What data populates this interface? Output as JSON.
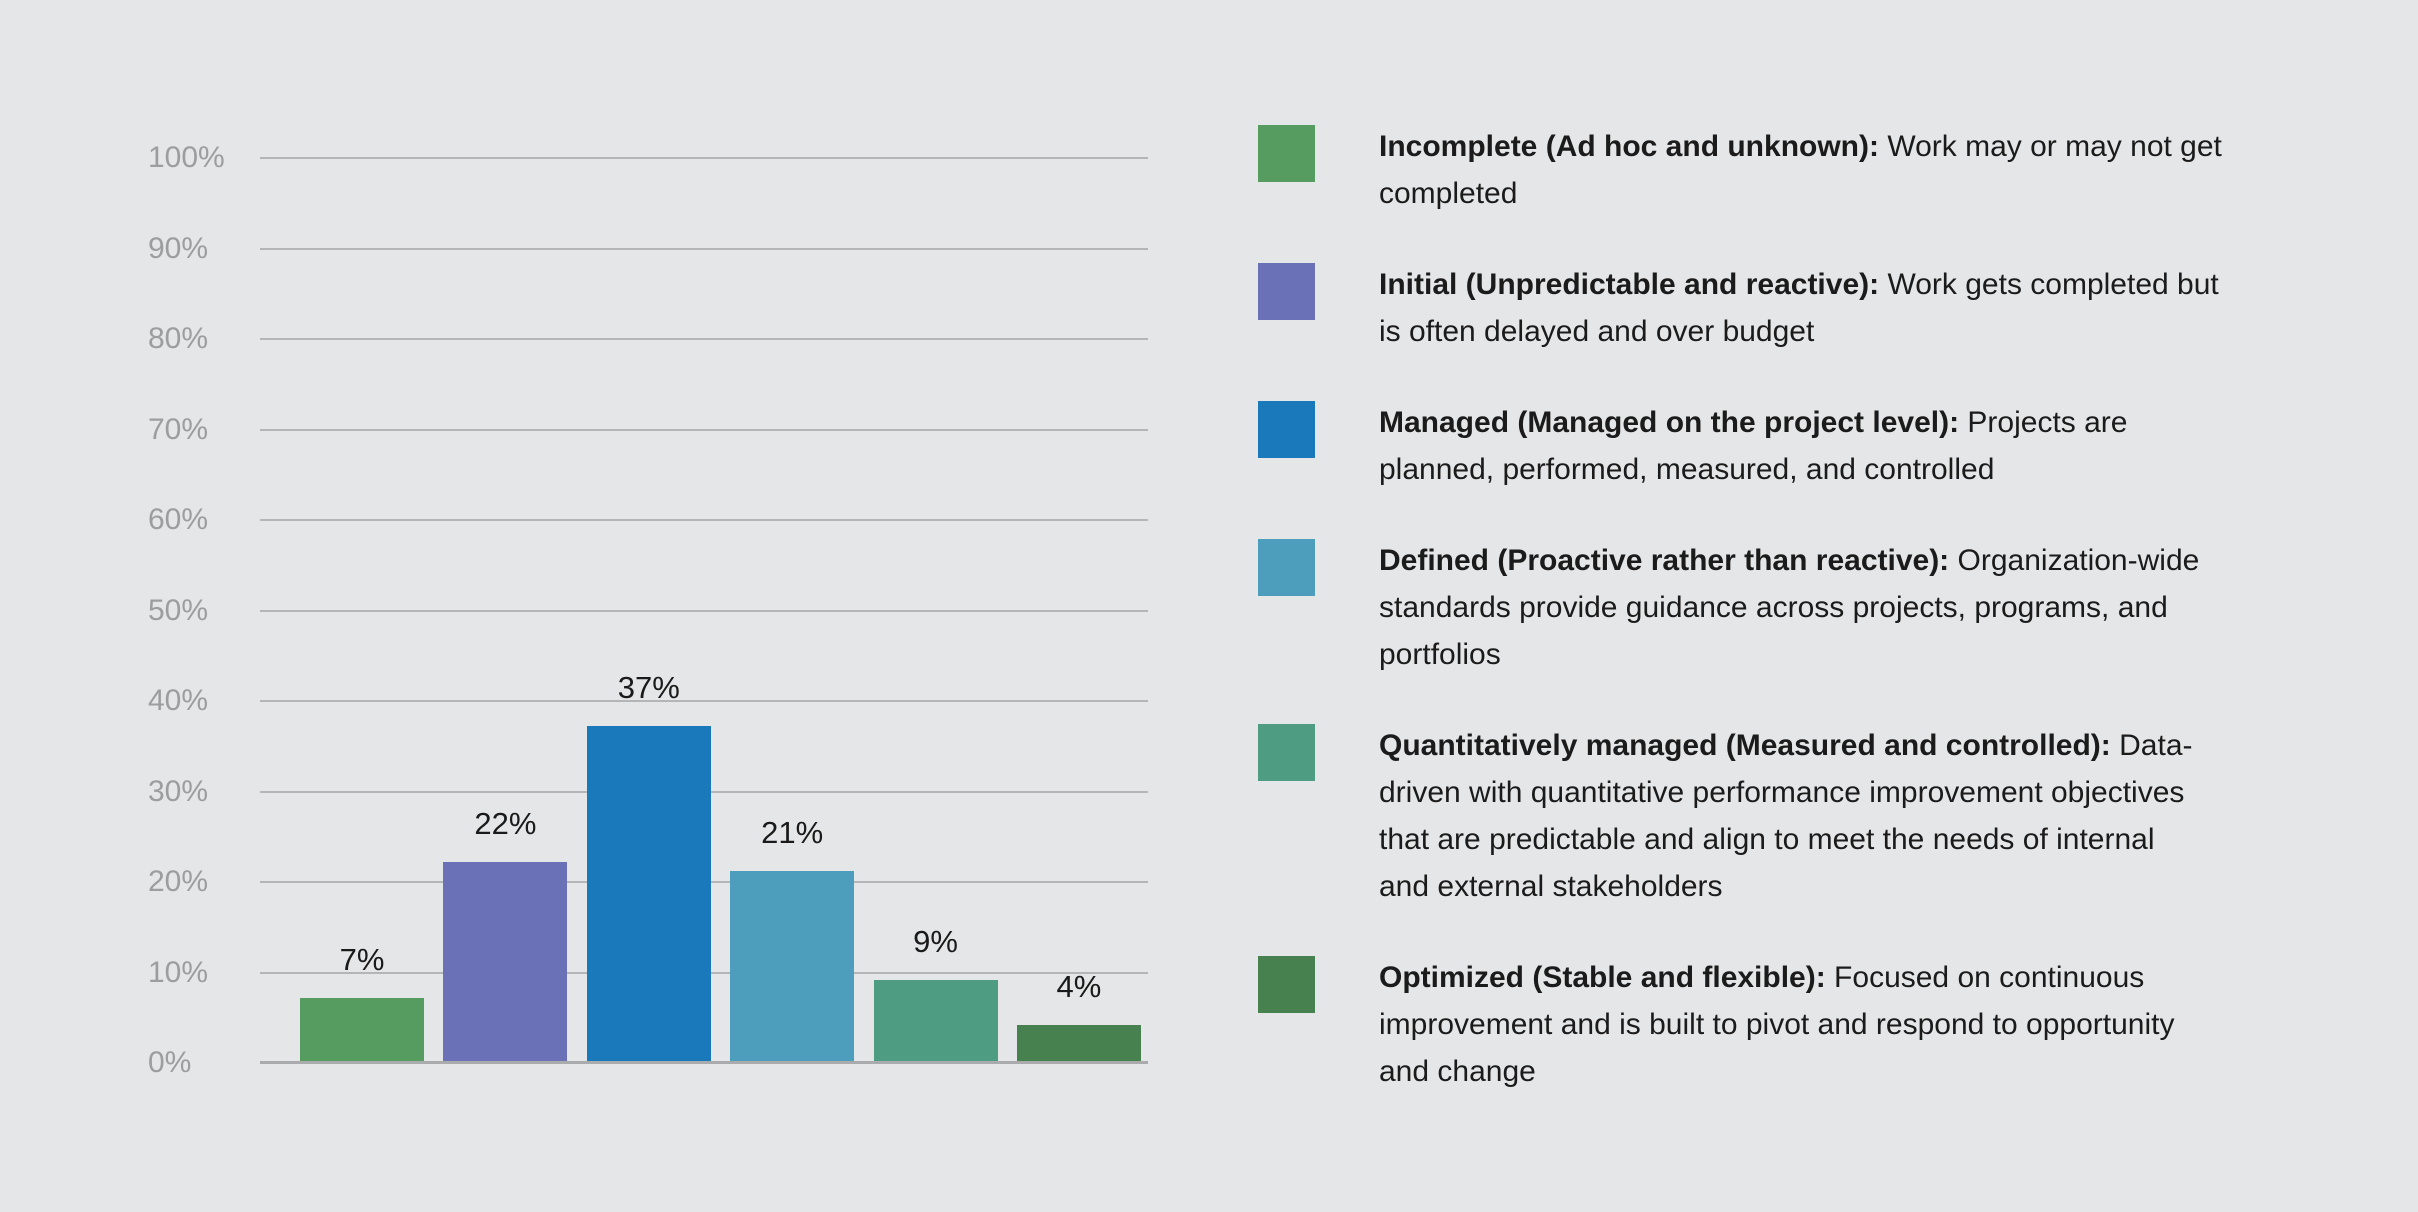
{
  "background_color": "#e5e6e7",
  "colors": {
    "grid_line": "#b4b5b7",
    "baseline": "#a9abad",
    "axis_label": "#9b9d9f",
    "value_label": "#1a1a1a",
    "legend_text": "#1b1b1b"
  },
  "chart_data": {
    "type": "bar",
    "title": "",
    "xlabel": "",
    "ylabel": "",
    "ylim": [
      0,
      100
    ],
    "grid": true,
    "legend_position": "right",
    "categories": [
      "Incomplete",
      "Initial",
      "Managed",
      "Defined",
      "Quantitatively managed",
      "Optimized"
    ],
    "values": [
      7,
      22,
      37,
      21,
      9,
      4
    ],
    "value_labels": [
      "7%",
      "22%",
      "37%",
      "21%",
      "9%",
      "4%"
    ],
    "bar_colors": [
      "#569c61",
      "#6b71b7",
      "#1a79bb",
      "#4d9ebd",
      "#4e9c81",
      "#47814f"
    ],
    "y_ticks": [
      {
        "value": 0,
        "label": "0%"
      },
      {
        "value": 10,
        "label": "10%"
      },
      {
        "value": 20,
        "label": "20%"
      },
      {
        "value": 30,
        "label": "30%"
      },
      {
        "value": 40,
        "label": "40%"
      },
      {
        "value": 50,
        "label": "50%"
      },
      {
        "value": 60,
        "label": "60%"
      },
      {
        "value": 70,
        "label": "70%"
      },
      {
        "value": 80,
        "label": "80%"
      },
      {
        "value": 90,
        "label": "90%"
      },
      {
        "value": 100,
        "label": "100%"
      }
    ]
  },
  "legend": {
    "items": [
      {
        "label": "Incomplete (Ad hoc and unknown):",
        "description": " Work may or may not get\ncompleted",
        "color": "#569c61"
      },
      {
        "label": "Initial (Unpredictable and reactive):",
        "description": " Work gets completed but\nis often delayed and over budget",
        "color": "#6b71b7"
      },
      {
        "label": "Managed (Managed on the project level):",
        "description": " Projects are\nplanned, performed, measured, and controlled",
        "color": "#1a79bb"
      },
      {
        "label": "Defined (Proactive rather than reactive):",
        "description": " Organization-wide\nstandards provide guidance across projects, programs, and\nportfolios",
        "color": "#4d9ebd"
      },
      {
        "label": "Quantitatively managed (Measured and controlled):",
        "description": " Data-\ndriven with quantitative performance improvement objectives\nthat are predictable and align to meet the needs of internal\nand external stakeholders",
        "color": "#4e9c81"
      },
      {
        "label": "Optimized (Stable and flexible):",
        "description": " Focused on continuous\nimprovement and is built to pivot and respond to opportunity\nand change",
        "color": "#47814f"
      }
    ]
  }
}
